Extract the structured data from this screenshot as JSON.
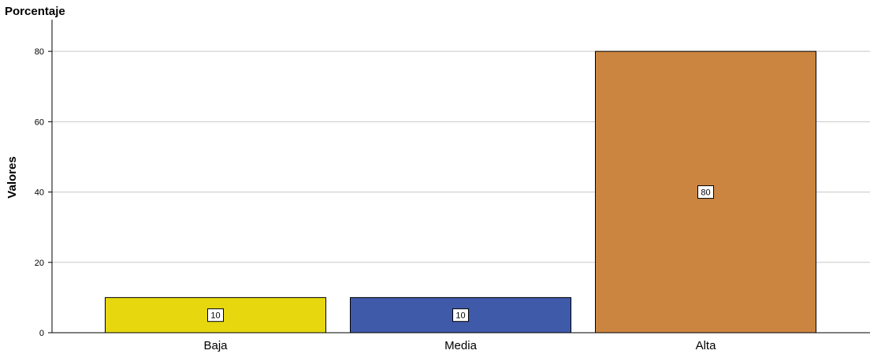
{
  "chart_data": {
    "type": "bar",
    "title": "Porcentaje",
    "ylabel": "Valores",
    "xlabel": "",
    "categories": [
      "Baja",
      "Media",
      "Alta"
    ],
    "values": [
      10,
      10,
      80
    ],
    "data_labels": [
      "10",
      "10",
      "80"
    ],
    "colors": [
      "#e6d70f",
      "#3f5aa8",
      "#cc8540"
    ],
    "ylim": [
      0,
      89
    ],
    "yticks": [
      0,
      20,
      40,
      60,
      80
    ],
    "grid": true,
    "legend": "none"
  }
}
